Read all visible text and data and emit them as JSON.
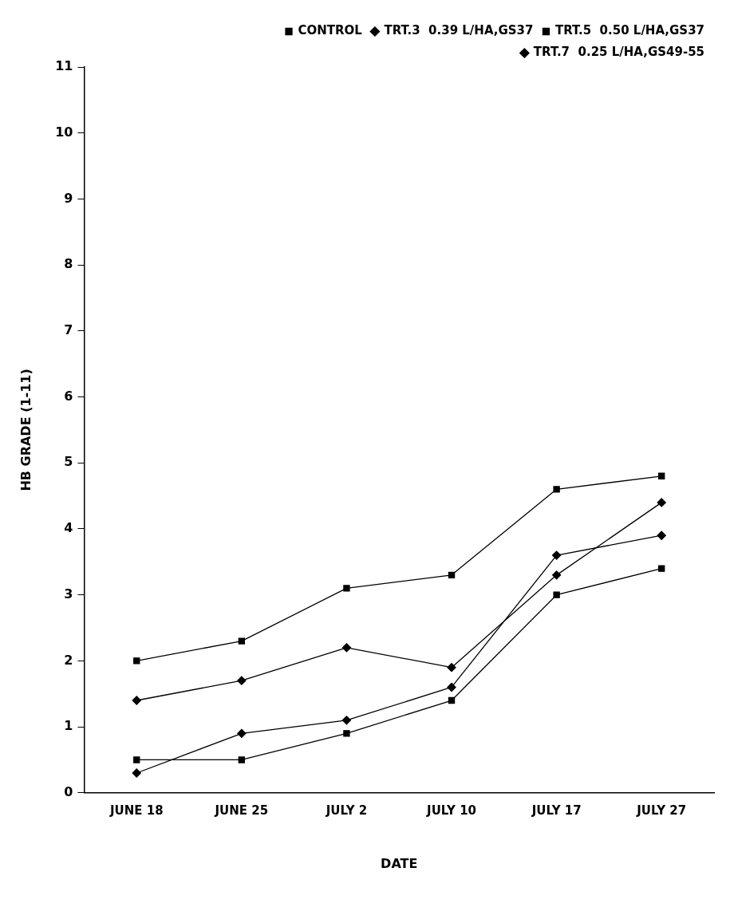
{
  "chart_data": {
    "type": "line",
    "xlabel": "DATE",
    "ylabel": "HB GRADE (1-11)",
    "categories": [
      "JUNE 18",
      "JUNE 25",
      "JULY 2",
      "JULY 10",
      "JULY 17",
      "JULY 27"
    ],
    "series": [
      {
        "name": "CONTROL",
        "color": "#000000",
        "marker": "square",
        "values": [
          2.0,
          2.3,
          3.1,
          3.3,
          4.6,
          4.8
        ]
      },
      {
        "name": "TRT.3  0.39 L/HA,GS37",
        "color": "#000000",
        "marker": "diamond",
        "values": [
          0.3,
          0.9,
          1.1,
          1.6,
          3.6,
          3.9
        ]
      },
      {
        "name": "TRT.5  0.50 L/HA,GS37",
        "color": "#000000",
        "marker": "square",
        "values": [
          0.5,
          0.5,
          0.9,
          1.4,
          3.0,
          3.4
        ]
      },
      {
        "name": "TRT.7  0.25 L/HA,GS49-55",
        "color": "#000000",
        "marker": "diamond",
        "values": [
          1.4,
          1.7,
          2.2,
          1.9,
          3.3,
          4.4
        ]
      }
    ],
    "ylim": [
      0,
      11
    ],
    "yticks": [
      0,
      1,
      2,
      3,
      4,
      5,
      6,
      7,
      8,
      9,
      10,
      11
    ],
    "grid": false,
    "legend": "top right"
  }
}
